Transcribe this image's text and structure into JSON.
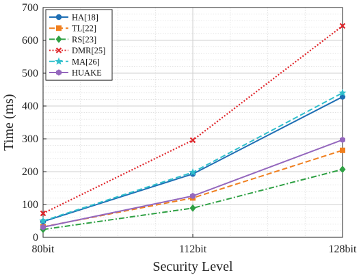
{
  "chart_data": {
    "type": "line",
    "categories": [
      "80bit",
      "112bit",
      "128bit"
    ],
    "xlabel": "Security Level",
    "ylabel": "Time (ms)",
    "ylim": [
      0,
      700
    ],
    "yticks": [
      0,
      100,
      200,
      300,
      400,
      500,
      600,
      700
    ],
    "grid": true,
    "minor_grid": true,
    "legend_position": "top-left",
    "series": [
      {
        "name": "HA[18]",
        "values": [
          48,
          193,
          428
        ],
        "color": "#1f6fb4",
        "dash": "solid",
        "marker": "circle"
      },
      {
        "name": "TL[22]",
        "values": [
          32,
          120,
          265
        ],
        "color": "#f07f1e",
        "dash": "dash",
        "marker": "square"
      },
      {
        "name": "RS[23]",
        "values": [
          24,
          89,
          207
        ],
        "color": "#2ea043",
        "dash": "dashdot",
        "marker": "diamond"
      },
      {
        "name": "DMR[25]",
        "values": [
          73,
          296,
          644
        ],
        "color": "#e0262b",
        "dash": "dot",
        "marker": "x"
      },
      {
        "name": "MA[26]",
        "values": [
          50,
          198,
          440
        ],
        "color": "#2fbfcc",
        "dash": "dash",
        "marker": "star"
      },
      {
        "name": "HUAKE",
        "values": [
          31,
          126,
          297
        ],
        "color": "#9467bd",
        "dash": "solid",
        "marker": "hexagon"
      }
    ]
  }
}
